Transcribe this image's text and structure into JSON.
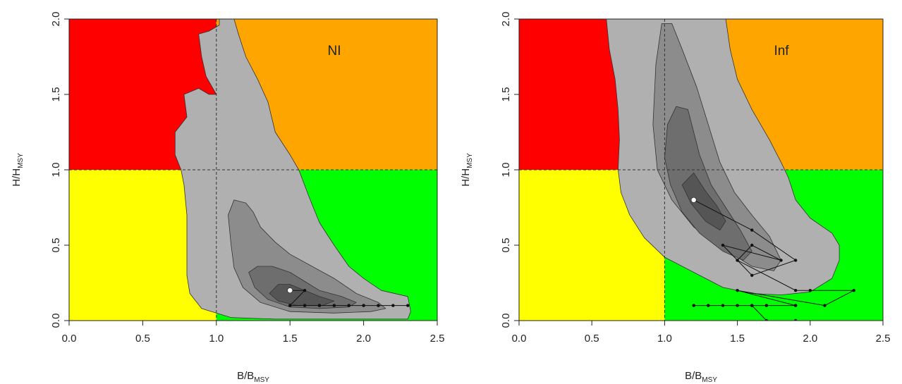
{
  "chart_data": [
    {
      "type": "scatter",
      "subtype": "kobe-plot-with-density-contours",
      "panel_label": "NI",
      "xlabel_main": "B/B",
      "xlabel_sub": "MSY",
      "ylabel_main": "H/H",
      "ylabel_sub": "MSY",
      "xlim": [
        0,
        2.5
      ],
      "ylim": [
        0,
        2.0
      ],
      "xticks": [
        "0.0",
        "0.5",
        "1.0",
        "1.5",
        "2.0",
        "2.5"
      ],
      "yticks": [
        "0.0",
        "0.5",
        "1.0",
        "1.5",
        "2.0"
      ],
      "reference_lines": {
        "x": 1.0,
        "y": 1.0,
        "style": "dashed"
      },
      "quadrant_colors": {
        "overfished_overfishing": "#ff0000",
        "healthy_overfishing": "#ffa500",
        "overfished_ok": "#ffff00",
        "healthy": "#00ff00"
      },
      "contour_fills": [
        "#b0b0b0",
        "#8c8c8c",
        "#6e6e6e",
        "#555555"
      ],
      "contours": [
        [
          [
            1.02,
            2.0
          ],
          [
            1.02,
            1.96
          ],
          [
            0.95,
            1.92
          ],
          [
            0.88,
            1.9
          ],
          [
            0.9,
            1.75
          ],
          [
            0.93,
            1.62
          ],
          [
            1.0,
            1.5
          ],
          [
            0.95,
            1.5
          ],
          [
            0.88,
            1.54
          ],
          [
            0.78,
            1.5
          ],
          [
            0.8,
            1.35
          ],
          [
            0.72,
            1.25
          ],
          [
            0.72,
            1.1
          ],
          [
            0.76,
            1.0
          ],
          [
            0.78,
            0.9
          ],
          [
            0.8,
            0.7
          ],
          [
            0.8,
            0.5
          ],
          [
            0.8,
            0.3
          ],
          [
            0.82,
            0.18
          ],
          [
            0.9,
            0.08
          ],
          [
            1.1,
            0.02
          ],
          [
            1.4,
            0.01
          ],
          [
            1.8,
            0.01
          ],
          [
            2.3,
            0.01
          ],
          [
            2.32,
            0.06
          ],
          [
            2.3,
            0.16
          ],
          [
            2.12,
            0.2
          ],
          [
            2.0,
            0.28
          ],
          [
            1.9,
            0.36
          ],
          [
            1.8,
            0.5
          ],
          [
            1.7,
            0.65
          ],
          [
            1.63,
            0.82
          ],
          [
            1.56,
            1.0
          ],
          [
            1.5,
            1.1
          ],
          [
            1.4,
            1.25
          ],
          [
            1.35,
            1.45
          ],
          [
            1.28,
            1.6
          ],
          [
            1.2,
            1.75
          ],
          [
            1.15,
            1.9
          ],
          [
            1.12,
            2.0
          ]
        ],
        [
          [
            1.12,
            0.8
          ],
          [
            1.08,
            0.7
          ],
          [
            1.1,
            0.5
          ],
          [
            1.12,
            0.35
          ],
          [
            1.18,
            0.22
          ],
          [
            1.3,
            0.12
          ],
          [
            1.5,
            0.06
          ],
          [
            1.8,
            0.05
          ],
          [
            2.05,
            0.06
          ],
          [
            2.15,
            0.08
          ],
          [
            2.1,
            0.12
          ],
          [
            1.95,
            0.18
          ],
          [
            1.8,
            0.28
          ],
          [
            1.65,
            0.36
          ],
          [
            1.5,
            0.44
          ],
          [
            1.4,
            0.52
          ],
          [
            1.3,
            0.62
          ],
          [
            1.25,
            0.72
          ],
          [
            1.2,
            0.78
          ]
        ],
        [
          [
            1.22,
            0.32
          ],
          [
            1.26,
            0.22
          ],
          [
            1.35,
            0.14
          ],
          [
            1.5,
            0.09
          ],
          [
            1.7,
            0.08
          ],
          [
            1.9,
            0.09
          ],
          [
            1.95,
            0.12
          ],
          [
            1.85,
            0.16
          ],
          [
            1.7,
            0.2
          ],
          [
            1.6,
            0.26
          ],
          [
            1.5,
            0.32
          ],
          [
            1.38,
            0.36
          ],
          [
            1.28,
            0.36
          ]
        ],
        [
          [
            1.36,
            0.18
          ],
          [
            1.42,
            0.13
          ],
          [
            1.55,
            0.1
          ],
          [
            1.72,
            0.1
          ],
          [
            1.8,
            0.13
          ],
          [
            1.7,
            0.16
          ],
          [
            1.6,
            0.2
          ],
          [
            1.5,
            0.24
          ],
          [
            1.42,
            0.24
          ]
        ]
      ],
      "trajectory": {
        "x": [
          1.5,
          1.6,
          1.5,
          1.6,
          1.7,
          1.8,
          1.9,
          2.0,
          2.1,
          2.2,
          2.3,
          2.1,
          2.0,
          1.9,
          1.8,
          1.7,
          1.6,
          1.5
        ],
        "y": [
          0.2,
          0.2,
          0.1,
          0.1,
          0.1,
          0.1,
          0.1,
          0.1,
          0.1,
          0.1,
          0.1,
          0.1,
          0.1,
          0.1,
          0.1,
          0.1,
          0.1,
          0.1
        ]
      },
      "current_point": {
        "x": 1.5,
        "y": 0.2
      }
    },
    {
      "type": "scatter",
      "subtype": "kobe-plot-with-density-contours",
      "panel_label": "Inf",
      "xlabel_main": "B/B",
      "xlabel_sub": "MSY",
      "ylabel_main": "H/H",
      "ylabel_sub": "MSY",
      "xlim": [
        0,
        2.5
      ],
      "ylim": [
        0,
        2.0
      ],
      "xticks": [
        "0.0",
        "0.5",
        "1.0",
        "1.5",
        "2.0",
        "2.5"
      ],
      "yticks": [
        "0.0",
        "0.5",
        "1.0",
        "1.5",
        "2.0"
      ],
      "reference_lines": {
        "x": 1.0,
        "y": 1.0,
        "style": "dashed"
      },
      "quadrant_colors": {
        "overfished_overfishing": "#ff0000",
        "healthy_overfishing": "#ffa500",
        "overfished_ok": "#ffff00",
        "healthy": "#00ff00"
      },
      "contour_fills": [
        "#b0b0b0",
        "#8c8c8c",
        "#6e6e6e",
        "#555555"
      ],
      "contours": [
        [
          [
            0.6,
            2.0
          ],
          [
            0.62,
            1.8
          ],
          [
            0.66,
            1.6
          ],
          [
            0.68,
            1.4
          ],
          [
            0.69,
            1.2
          ],
          [
            0.68,
            1.0
          ],
          [
            0.7,
            0.85
          ],
          [
            0.76,
            0.7
          ],
          [
            0.86,
            0.55
          ],
          [
            1.0,
            0.42
          ],
          [
            1.2,
            0.32
          ],
          [
            1.4,
            0.22
          ],
          [
            1.6,
            0.18
          ],
          [
            1.8,
            0.17
          ],
          [
            2.0,
            0.19
          ],
          [
            2.15,
            0.28
          ],
          [
            2.2,
            0.4
          ],
          [
            2.2,
            0.5
          ],
          [
            2.15,
            0.58
          ],
          [
            2.0,
            0.68
          ],
          [
            1.9,
            0.8
          ],
          [
            1.85,
            0.95
          ],
          [
            1.8,
            1.05
          ],
          [
            1.72,
            1.2
          ],
          [
            1.6,
            1.4
          ],
          [
            1.5,
            1.6
          ],
          [
            1.45,
            1.8
          ],
          [
            1.42,
            2.0
          ]
        ],
        [
          [
            0.98,
            1.97
          ],
          [
            0.94,
            1.7
          ],
          [
            0.92,
            1.3
          ],
          [
            0.95,
            1.0
          ],
          [
            1.05,
            0.8
          ],
          [
            1.2,
            0.62
          ],
          [
            1.4,
            0.48
          ],
          [
            1.6,
            0.36
          ],
          [
            1.75,
            0.33
          ],
          [
            1.8,
            0.4
          ],
          [
            1.72,
            0.56
          ],
          [
            1.6,
            0.7
          ],
          [
            1.48,
            0.85
          ],
          [
            1.38,
            1.05
          ],
          [
            1.3,
            1.3
          ],
          [
            1.22,
            1.55
          ],
          [
            1.12,
            1.8
          ],
          [
            1.05,
            1.97
          ]
        ],
        [
          [
            1.0,
            1.08
          ],
          [
            1.04,
            0.9
          ],
          [
            1.12,
            0.72
          ],
          [
            1.24,
            0.58
          ],
          [
            1.4,
            0.46
          ],
          [
            1.54,
            0.4
          ],
          [
            1.6,
            0.46
          ],
          [
            1.52,
            0.6
          ],
          [
            1.42,
            0.75
          ],
          [
            1.32,
            0.9
          ],
          [
            1.24,
            1.1
          ],
          [
            1.16,
            1.4
          ],
          [
            1.08,
            1.42
          ],
          [
            1.02,
            1.3
          ]
        ],
        [
          [
            1.12,
            0.9
          ],
          [
            1.18,
            0.78
          ],
          [
            1.28,
            0.66
          ],
          [
            1.38,
            0.6
          ],
          [
            1.42,
            0.66
          ],
          [
            1.36,
            0.76
          ],
          [
            1.28,
            0.86
          ],
          [
            1.2,
            0.98
          ]
        ]
      ],
      "trajectory": {
        "x": [
          1.2,
          1.6,
          1.9,
          1.6,
          1.5,
          1.4,
          1.8,
          1.6,
          1.5,
          1.9,
          2.0,
          2.3,
          2.1,
          1.5,
          1.9,
          1.6,
          1.7,
          1.6,
          1.5,
          1.4,
          1.3,
          1.2,
          1.9,
          1.7,
          1.6,
          1.7,
          1.9
        ],
        "y": [
          0.8,
          0.6,
          0.4,
          0.3,
          0.4,
          0.5,
          0.4,
          0.5,
          0.4,
          0.2,
          0.2,
          0.2,
          0.1,
          0.2,
          0.1,
          0.1,
          0.1,
          0.1,
          0.1,
          0.1,
          0.1,
          0.1,
          0.1,
          0.1,
          0.1,
          0.0,
          0.0
        ]
      },
      "current_point": {
        "x": 1.2,
        "y": 0.8
      }
    }
  ]
}
